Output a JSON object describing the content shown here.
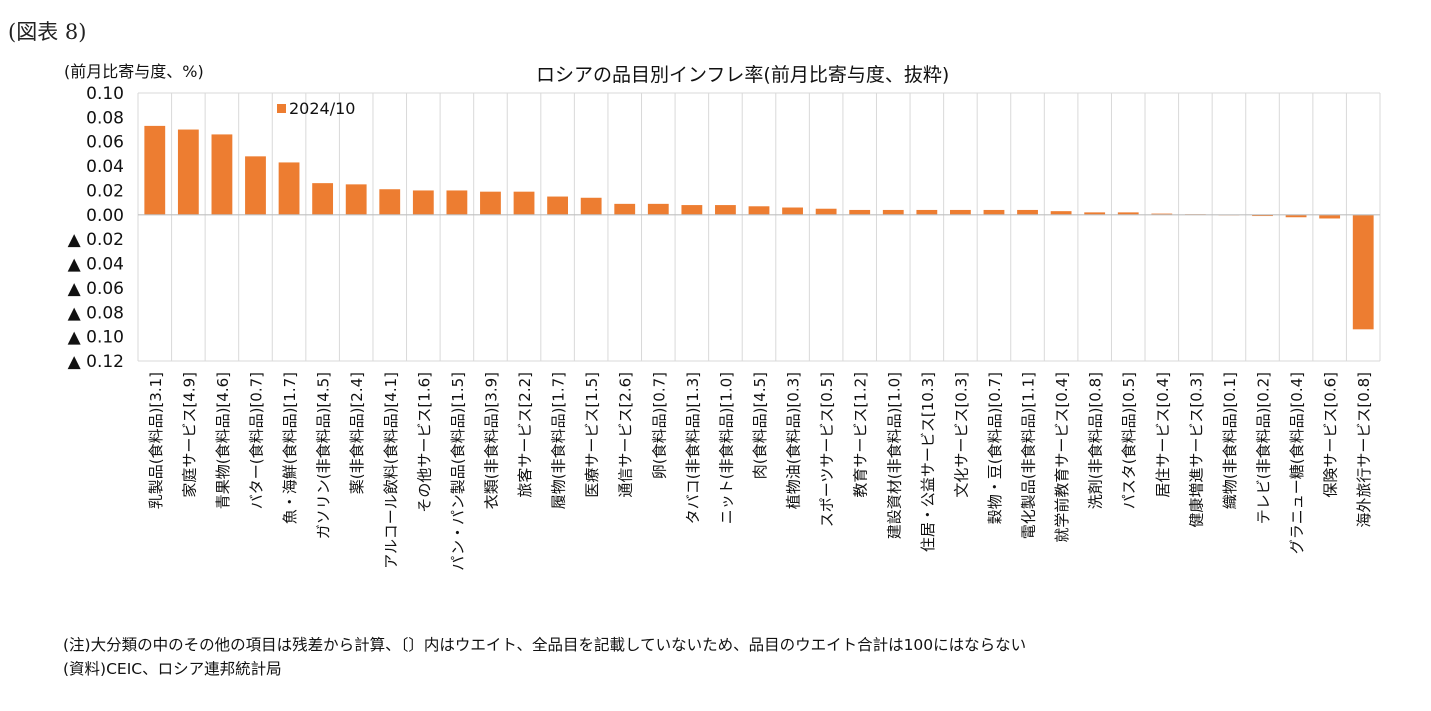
{
  "figure_label": "(図表 8)",
  "unit_label": "(前月比寄与度、%)",
  "notes": {
    "note": "(注)大分類の中のその他の項目は残差から計算、〔〕内はウエイト、全品目を記載していないため、品目のウエイト合計は100にはならない",
    "source": "(資料)CEIC、ロシア連邦統計局"
  },
  "colors": {
    "bar": "#ED7D31",
    "grid": "#D9D9D9",
    "axis": "#BFBFBF"
  },
  "chart_data": {
    "type": "bar",
    "title": "ロシアの品目別インフレ率(前月比寄与度、抜粋)",
    "xlabel": "",
    "ylabel": "",
    "ylim": [
      -0.12,
      0.1
    ],
    "yticks": [
      0.1,
      0.08,
      0.06,
      0.04,
      0.02,
      0.0,
      -0.02,
      -0.04,
      -0.06,
      -0.08,
      -0.1,
      -0.12
    ],
    "ytick_labels": [
      "0.10",
      "0.08",
      "0.06",
      "0.04",
      "0.02",
      "0.00",
      "▲ 0.02",
      "▲ 0.04",
      "▲ 0.06",
      "▲ 0.08",
      "▲ 0.10",
      "▲ 0.12"
    ],
    "legend": {
      "position": "top-left",
      "entries": [
        "2024/10"
      ]
    },
    "grid": true,
    "categories": [
      "乳製品(食料品)[3.1]",
      "家庭サービス[4.9]",
      "青果物(食料品)[4.6]",
      "バター(食料品)[0.7]",
      "魚・海鮮(食料品)[1.7]",
      "ガソリン(非食料品)[4.5]",
      "薬(非食料品)[2.4]",
      "アルコール飲料(食料品)[4.1]",
      "その他サービス[1.6]",
      "パン・パン製品(食料品)[1.5]",
      "衣類(非食料品)[3.9]",
      "旅客サービス[2.2]",
      "履物(非食料品)[1.7]",
      "医療サービス[1.5]",
      "通信サービス[2.6]",
      "卵(食料品)[0.7]",
      "タバコ(非食料品)[1.3]",
      "ニット(非食料品)[1.0]",
      "肉(食料品)[4.5]",
      "植物油(食料品)[0.3]",
      "スポーツサービス[0.5]",
      "教育サービス[1.2]",
      "建設資材(非食料品)[1.0]",
      "住居・公益サービス[10.3]",
      "文化サービス[0.3]",
      "穀物・豆(食料品)[0.7]",
      "電化製品(非食料品)[1.1]",
      "就学前教育サービス[0.4]",
      "洗剤(非食料品)[0.8]",
      "パスタ(食料品)[0.5]",
      "居住サービス[0.4]",
      "健康増進サービス[0.3]",
      "織物(非食料品)[0.1]",
      "テレビ(非食料品)[0.2]",
      "グラニュー糖(食料品)[0.4]",
      "保険サービス[0.6]",
      "海外旅行サービス[0.8]"
    ],
    "series": [
      {
        "name": "2024/10",
        "values": [
          0.073,
          0.07,
          0.066,
          0.048,
          0.043,
          0.026,
          0.025,
          0.021,
          0.02,
          0.02,
          0.019,
          0.019,
          0.015,
          0.014,
          0.009,
          0.009,
          0.008,
          0.008,
          0.007,
          0.006,
          0.005,
          0.004,
          0.004,
          0.004,
          0.004,
          0.004,
          0.004,
          0.003,
          0.002,
          0.002,
          0.001,
          0.0005,
          0.0,
          -0.001,
          -0.002,
          -0.003,
          -0.094
        ]
      }
    ]
  }
}
